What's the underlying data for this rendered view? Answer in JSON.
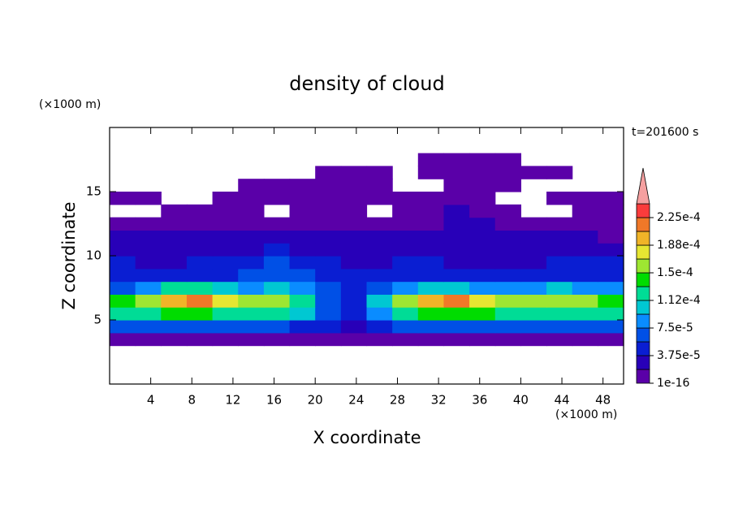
{
  "chart_data": {
    "type": "contour",
    "title": "density of cloud",
    "x_label": "X coordinate",
    "y_label": "Z coordinate",
    "x_unit": "(×1000 m)",
    "y_unit": "(×1000 m)",
    "time_label": "t=201600 s",
    "xlim": [
      0,
      50
    ],
    "ylim": [
      0,
      20
    ],
    "xticks": [
      4,
      8,
      12,
      16,
      20,
      24,
      28,
      32,
      36,
      40,
      44,
      48
    ],
    "yticks": [
      5,
      10,
      15
    ],
    "x": [
      1.25,
      3.75,
      6.25,
      8.75,
      11.25,
      13.75,
      16.25,
      18.75,
      21.25,
      23.75,
      26.25,
      28.75,
      31.25,
      33.75,
      36.25,
      38.75,
      41.25,
      43.75,
      46.25,
      48.75
    ],
    "y": [
      3.5,
      4.5,
      5.5,
      6.5,
      7.5,
      8.5,
      9.5,
      10.5,
      11.5,
      12.5,
      13.5,
      14.5,
      15.5,
      16.5,
      17.5
    ],
    "z": [
      [
        5e-06,
        5e-06,
        5e-06,
        5e-06,
        5e-06,
        5e-06,
        5e-06,
        5e-06,
        5e-06,
        5e-06,
        5e-06,
        5e-06,
        5e-06,
        5e-06,
        5e-06,
        5e-06,
        5e-06,
        5e-06,
        5e-06,
        5e-06
      ],
      [
        6e-05,
        6e-05,
        6.5e-05,
        6e-05,
        6e-05,
        6e-05,
        6e-05,
        5e-05,
        4e-05,
        3e-05,
        5e-05,
        6e-05,
        6.5e-05,
        6e-05,
        6e-05,
        6e-05,
        6e-05,
        6e-05,
        6e-05,
        6e-05
      ],
      [
        0.000125,
        0.00013,
        0.00014,
        0.00014,
        0.00013,
        0.00013,
        0.00013,
        0.00011,
        7e-05,
        5e-05,
        9e-05,
        0.00013,
        0.00014,
        0.00014,
        0.000135,
        0.00013,
        0.00013,
        0.00013,
        0.000125,
        0.00013
      ],
      [
        0.00014,
        0.00016,
        0.00019,
        0.00021,
        0.00018,
        0.00016,
        0.000165,
        0.00012,
        7e-05,
        5e-05,
        0.00011,
        0.00016,
        0.0002,
        0.00021,
        0.00018,
        0.00015,
        0.00016,
        0.00015,
        0.00015,
        0.000145
      ],
      [
        7e-05,
        9e-05,
        0.00012,
        0.00013,
        0.0001,
        9e-05,
        0.0001,
        9e-05,
        6e-05,
        5e-05,
        7e-05,
        9e-05,
        0.00011,
        0.00011,
        9e-05,
        8e-05,
        9e-05,
        0.0001,
        9e-05,
        8e-05
      ],
      [
        4e-05,
        4.5e-05,
        5e-05,
        5e-05,
        5e-05,
        6e-05,
        7e-05,
        6e-05,
        5e-05,
        4e-05,
        4e-05,
        4.5e-05,
        5e-05,
        5e-05,
        4.5e-05,
        4e-05,
        5e-05,
        5.5e-05,
        5e-05,
        4.5e-05
      ],
      [
        4.5e-05,
        3.5e-05,
        3e-05,
        4e-05,
        4e-05,
        5e-05,
        6e-05,
        5e-05,
        4e-05,
        3.5e-05,
        3.5e-05,
        4e-05,
        4e-05,
        3.5e-05,
        3.5e-05,
        3e-05,
        3.5e-05,
        4e-05,
        4e-05,
        4e-05
      ],
      [
        3e-05,
        2.5e-05,
        2.5e-05,
        3e-05,
        3e-05,
        3.5e-05,
        4e-05,
        3.5e-05,
        3e-05,
        3e-05,
        3e-05,
        3e-05,
        2.5e-05,
        2.5e-05,
        3e-05,
        2.5e-05,
        2.5e-05,
        3e-05,
        3e-05,
        3e-05
      ],
      [
        2e-05,
        2e-05,
        2e-05,
        2e-05,
        2e-05,
        2.5e-05,
        2e-05,
        2e-05,
        2e-05,
        2e-05,
        2e-05,
        2e-05,
        2e-05,
        2.5e-05,
        2.5e-05,
        2e-05,
        2e-05,
        2e-05,
        2e-05,
        1.5e-05
      ],
      [
        1.5e-05,
        1e-05,
        1e-05,
        1e-05,
        1e-05,
        1.5e-05,
        1e-05,
        1e-05,
        1e-05,
        1e-05,
        1e-05,
        1e-05,
        1.5e-05,
        2e-05,
        2e-05,
        1.5e-05,
        1e-05,
        1e-05,
        1e-05,
        1e-05
      ],
      [
        null,
        null,
        5e-06,
        5e-06,
        5e-06,
        1e-05,
        null,
        5e-06,
        5e-06,
        5e-06,
        null,
        1e-05,
        1e-05,
        2e-05,
        1.5e-05,
        1e-05,
        null,
        null,
        5e-06,
        5e-06
      ],
      [
        5e-06,
        5e-06,
        null,
        null,
        5e-06,
        5e-06,
        5e-06,
        5e-06,
        5e-06,
        5e-06,
        5e-06,
        5e-06,
        5e-06,
        5e-06,
        5e-06,
        null,
        null,
        5e-06,
        5e-06,
        5e-06
      ],
      [
        null,
        null,
        null,
        null,
        null,
        5e-06,
        5e-06,
        5e-06,
        5e-06,
        5e-06,
        5e-06,
        null,
        null,
        5e-06,
        5e-06,
        5e-06,
        null,
        null,
        null,
        null
      ],
      [
        null,
        null,
        null,
        null,
        null,
        null,
        null,
        null,
        5e-06,
        5e-06,
        5e-06,
        null,
        5e-06,
        5e-06,
        5e-06,
        5e-06,
        5e-06,
        5e-06,
        null,
        null
      ],
      [
        null,
        null,
        null,
        null,
        null,
        null,
        null,
        null,
        null,
        null,
        null,
        null,
        5e-06,
        5e-06,
        5e-06,
        5e-06,
        null,
        null,
        null,
        null
      ]
    ],
    "levels": [
      1e-16,
      1.875e-05,
      3.75e-05,
      5.625e-05,
      7.5e-05,
      9.375e-05,
      0.0001125,
      0.00013125,
      0.00015,
      0.00016875,
      0.0001875,
      0.00020625,
      0.000225,
      0.00024375
    ],
    "colors": [
      "#5a00a8",
      "#2800b8",
      "#0a1ed2",
      "#0050e6",
      "#0a8cff",
      "#00c8d2",
      "#00dc96",
      "#00dc00",
      "#9ee632",
      "#e6e632",
      "#f0b428",
      "#f07828",
      "#fa3c3c"
    ],
    "over_color": "#f5a0a0",
    "colorbar_ticks": [
      {
        "value": 1e-16,
        "label": "1e-16"
      },
      {
        "value": 3.75e-05,
        "label": "3.75e-5"
      },
      {
        "value": 7.5e-05,
        "label": "7.5e-5"
      },
      {
        "value": 0.0001125,
        "label": "1.12e-4"
      },
      {
        "value": 0.00015,
        "label": "1.5e-4"
      },
      {
        "value": 0.0001875,
        "label": "1.88e-4"
      },
      {
        "value": 0.000225,
        "label": "2.25e-4"
      }
    ]
  }
}
